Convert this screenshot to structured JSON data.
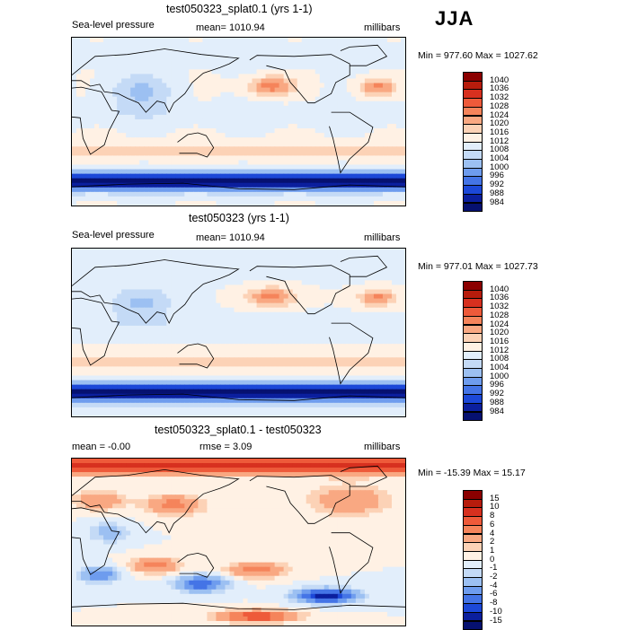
{
  "season": "JJA",
  "panels": [
    {
      "title": "test050323_splat0.1 (yrs 1-1)",
      "left_label": "Sea-level pressure",
      "center_label": "mean= 1010.94",
      "right_label": "millibars",
      "minmax": "Min = 977.60 Max = 1027.62"
    },
    {
      "title": "test050323 (yrs 1-1)",
      "left_label": "Sea-level pressure",
      "center_label": "mean= 1010.94",
      "right_label": "millibars",
      "minmax": "Min = 977.01 Max = 1027.73"
    },
    {
      "title": "test050323_splat0.1 - test050323",
      "left_label": "mean =   -0.00",
      "center_label": "rmse =    3.09",
      "right_label": "millibars",
      "minmax": "Min = -15.39 Max =  15.17"
    }
  ],
  "chart_data": [
    {
      "type": "heatmap",
      "title": "test050323_splat0.1 (yrs 1-1)",
      "variable": "Sea-level pressure",
      "units": "millibars",
      "mean": 1010.94,
      "min": 977.6,
      "max": 1027.62,
      "colorbar_levels": [
        "1040",
        "1036",
        "1032",
        "1028",
        "1024",
        "1020",
        "1016",
        "1012",
        "1008",
        "1004",
        "1000",
        "996",
        "992",
        "988",
        "984"
      ],
      "colorbar_colors": [
        "#8b0000",
        "#b71c0c",
        "#d7301f",
        "#ee5a3a",
        "#f5845b",
        "#f9a882",
        "#fcd2b6",
        "#fff1e4",
        "#e2eefb",
        "#c4daf6",
        "#9cc0f2",
        "#6e9cee",
        "#4474e6",
        "#1c48d8",
        "#0b1f9e",
        "#061170"
      ]
    },
    {
      "type": "heatmap",
      "title": "test050323 (yrs 1-1)",
      "variable": "Sea-level pressure",
      "units": "millibars",
      "mean": 1010.94,
      "min": 977.01,
      "max": 1027.73,
      "colorbar_levels": [
        "1040",
        "1036",
        "1032",
        "1028",
        "1024",
        "1020",
        "1016",
        "1012",
        "1008",
        "1004",
        "1000",
        "996",
        "992",
        "988",
        "984"
      ],
      "colorbar_colors": [
        "#8b0000",
        "#b71c0c",
        "#d7301f",
        "#ee5a3a",
        "#f5845b",
        "#f9a882",
        "#fcd2b6",
        "#fff1e4",
        "#e2eefb",
        "#c4daf6",
        "#9cc0f2",
        "#6e9cee",
        "#4474e6",
        "#1c48d8",
        "#0b1f9e",
        "#061170"
      ]
    },
    {
      "type": "heatmap",
      "title": "test050323_splat0.1 - test050323",
      "units": "millibars",
      "mean": -0.0,
      "rmse": 3.09,
      "min": -15.39,
      "max": 15.17,
      "colorbar_levels": [
        "15",
        "10",
        "8",
        "6",
        "4",
        "2",
        "1",
        "0",
        "-1",
        "-2",
        "-4",
        "-6",
        "-8",
        "-10",
        "-15"
      ],
      "colorbar_colors": [
        "#8b0000",
        "#b71c0c",
        "#d7301f",
        "#ee5a3a",
        "#f5845b",
        "#f9a882",
        "#fcd2b6",
        "#fff1e4",
        "#e2eefb",
        "#c4daf6",
        "#9cc0f2",
        "#6e9cee",
        "#4474e6",
        "#1c48d8",
        "#0b1f9e",
        "#061170"
      ]
    }
  ]
}
